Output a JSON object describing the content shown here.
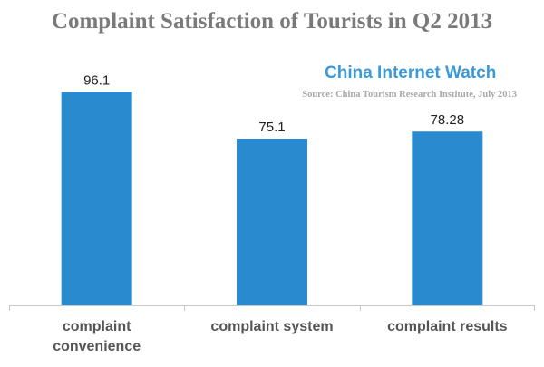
{
  "chart_data": {
    "type": "bar",
    "title": "Complaint Satisfaction of Tourists in Q2 2013",
    "categories": [
      "complaint convenience",
      "complaint system",
      "complaint results"
    ],
    "values": [
      96.1,
      75.1,
      78.28
    ],
    "value_labels": [
      "96.1",
      "75.1",
      "78.28"
    ],
    "xlabel": "",
    "ylabel": "",
    "ylim": [
      0,
      100
    ],
    "grid": false,
    "bar_color": "#2a8ad0"
  },
  "watermark": "China Internet Watch",
  "source": "Source: China Tourism Research Institute, July 2013"
}
